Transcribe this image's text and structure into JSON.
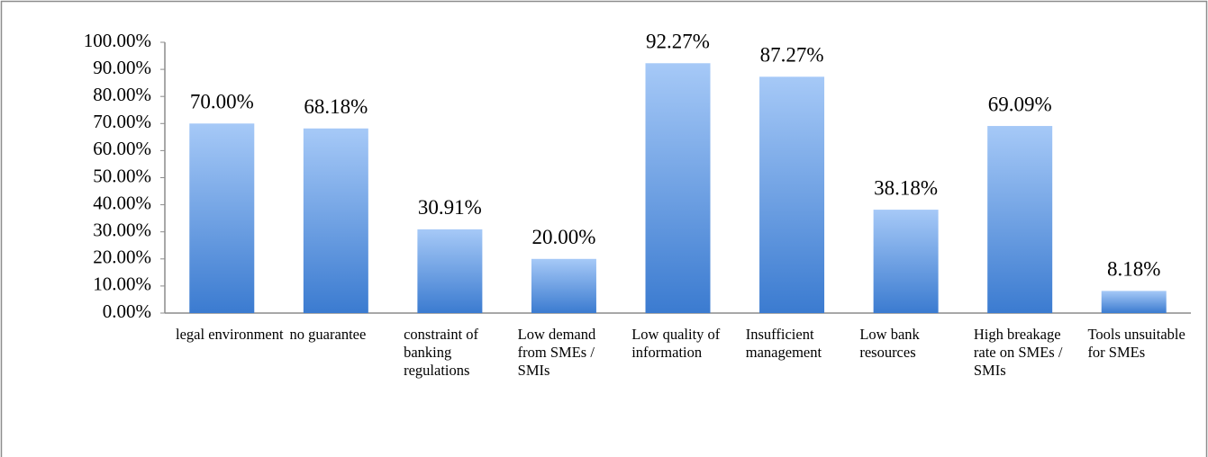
{
  "chart_data": {
    "type": "bar",
    "categories": [
      "legal environment",
      "no guarantee",
      "constraint of banking regulations",
      "Low demand from SMEs / SMIs",
      "Low quality of information",
      "Insufficient management",
      "Low bank resources",
      "High breakage rate on SMEs / SMIs",
      "Tools unsuitable for SMEs"
    ],
    "values": [
      70.0,
      68.18,
      30.91,
      20.0,
      92.27,
      87.27,
      38.18,
      69.09,
      8.18
    ],
    "value_labels": [
      "70.00%",
      "68.18%",
      "30.91%",
      "20.00%",
      "92.27%",
      "87.27%",
      "38.18%",
      "69.09%",
      "8.18%"
    ],
    "gradient": [
      "#a6c9f7",
      "#3b7bd0"
    ],
    "ylim": [
      0,
      100
    ],
    "yticks": [
      {
        "value": 0,
        "label": "0.00%"
      },
      {
        "value": 10,
        "label": "10.00%"
      },
      {
        "value": 20,
        "label": "20.00%"
      },
      {
        "value": 30,
        "label": "30.00%"
      },
      {
        "value": 40,
        "label": "40.00%"
      },
      {
        "value": 50,
        "label": "50.00%"
      },
      {
        "value": 60,
        "label": "60.00%"
      },
      {
        "value": 70,
        "label": "70.00%"
      },
      {
        "value": 80,
        "label": "80.00%"
      },
      {
        "value": 90,
        "label": "90.00%"
      },
      {
        "value": 100,
        "label": "100.00%"
      }
    ],
    "grid": false
  }
}
